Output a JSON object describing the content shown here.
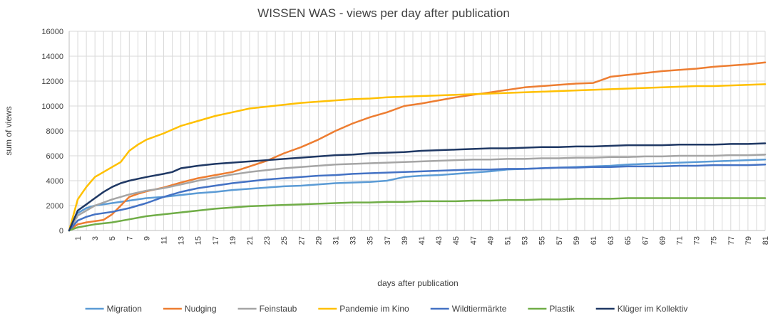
{
  "chart_data": {
    "type": "line",
    "title": "WISSEN WAS - views per day after publication",
    "xlabel": "days after publication",
    "ylabel": "sum of views",
    "ylim": [
      0,
      16000
    ],
    "yticks": [
      0,
      2000,
      4000,
      6000,
      8000,
      10000,
      12000,
      14000,
      16000
    ],
    "x_tick_labels": [
      1,
      3,
      5,
      7,
      9,
      11,
      13,
      15,
      17,
      19,
      21,
      23,
      25,
      27,
      29,
      31,
      33,
      35,
      37,
      39,
      41,
      43,
      45,
      47,
      49,
      51,
      53,
      55,
      57,
      59,
      61,
      63,
      65,
      67,
      69,
      71,
      73,
      75,
      77,
      79,
      81
    ],
    "x_range": [
      0,
      81
    ],
    "grid": "vertical and horizontal",
    "legend_position": "bottom",
    "series": [
      {
        "name": "Migration",
        "color": "#5b9bd5",
        "points": [
          [
            0,
            0
          ],
          [
            1,
            1400
          ],
          [
            2,
            1800
          ],
          [
            3,
            2000
          ],
          [
            5,
            2200
          ],
          [
            7,
            2400
          ],
          [
            9,
            2600
          ],
          [
            11,
            2700
          ],
          [
            13,
            2850
          ],
          [
            15,
            3000
          ],
          [
            17,
            3100
          ],
          [
            19,
            3250
          ],
          [
            21,
            3350
          ],
          [
            23,
            3450
          ],
          [
            25,
            3550
          ],
          [
            27,
            3600
          ],
          [
            29,
            3700
          ],
          [
            31,
            3800
          ],
          [
            33,
            3850
          ],
          [
            35,
            3900
          ],
          [
            37,
            4000
          ],
          [
            39,
            4300
          ],
          [
            41,
            4400
          ],
          [
            43,
            4450
          ],
          [
            45,
            4550
          ],
          [
            47,
            4650
          ],
          [
            49,
            4750
          ],
          [
            51,
            4900
          ],
          [
            53,
            4950
          ],
          [
            55,
            5000
          ],
          [
            57,
            5050
          ],
          [
            59,
            5100
          ],
          [
            61,
            5150
          ],
          [
            63,
            5200
          ],
          [
            65,
            5300
          ],
          [
            67,
            5350
          ],
          [
            69,
            5400
          ],
          [
            71,
            5450
          ],
          [
            73,
            5500
          ],
          [
            75,
            5550
          ],
          [
            77,
            5600
          ],
          [
            79,
            5650
          ],
          [
            81,
            5700
          ]
        ]
      },
      {
        "name": "Nudging",
        "color": "#ed7d31",
        "points": [
          [
            0,
            0
          ],
          [
            1,
            500
          ],
          [
            2,
            650
          ],
          [
            3,
            750
          ],
          [
            4,
            850
          ],
          [
            5,
            1300
          ],
          [
            6,
            2000
          ],
          [
            7,
            2700
          ],
          [
            8,
            2950
          ],
          [
            9,
            3150
          ],
          [
            11,
            3450
          ],
          [
            13,
            3850
          ],
          [
            15,
            4200
          ],
          [
            17,
            4450
          ],
          [
            19,
            4700
          ],
          [
            21,
            5150
          ],
          [
            23,
            5600
          ],
          [
            25,
            6200
          ],
          [
            27,
            6700
          ],
          [
            29,
            7300
          ],
          [
            31,
            8000
          ],
          [
            33,
            8600
          ],
          [
            35,
            9100
          ],
          [
            37,
            9500
          ],
          [
            39,
            10000
          ],
          [
            41,
            10200
          ],
          [
            43,
            10450
          ],
          [
            45,
            10700
          ],
          [
            47,
            10900
          ],
          [
            49,
            11100
          ],
          [
            51,
            11300
          ],
          [
            53,
            11500
          ],
          [
            55,
            11600
          ],
          [
            57,
            11700
          ],
          [
            59,
            11800
          ],
          [
            61,
            11850
          ],
          [
            62,
            12100
          ],
          [
            63,
            12350
          ],
          [
            65,
            12500
          ],
          [
            67,
            12650
          ],
          [
            69,
            12800
          ],
          [
            71,
            12900
          ],
          [
            73,
            13000
          ],
          [
            75,
            13150
          ],
          [
            77,
            13250
          ],
          [
            79,
            13350
          ],
          [
            81,
            13500
          ]
        ]
      },
      {
        "name": "Feinstaub",
        "color": "#a5a5a5",
        "points": [
          [
            0,
            0
          ],
          [
            1,
            1200
          ],
          [
            2,
            1600
          ],
          [
            3,
            2000
          ],
          [
            5,
            2500
          ],
          [
            7,
            2900
          ],
          [
            9,
            3200
          ],
          [
            11,
            3400
          ],
          [
            13,
            3700
          ],
          [
            15,
            4000
          ],
          [
            17,
            4250
          ],
          [
            19,
            4500
          ],
          [
            21,
            4700
          ],
          [
            23,
            4850
          ],
          [
            25,
            5000
          ],
          [
            27,
            5100
          ],
          [
            29,
            5200
          ],
          [
            31,
            5300
          ],
          [
            33,
            5350
          ],
          [
            35,
            5400
          ],
          [
            37,
            5450
          ],
          [
            39,
            5500
          ],
          [
            41,
            5550
          ],
          [
            43,
            5600
          ],
          [
            45,
            5650
          ],
          [
            47,
            5700
          ],
          [
            49,
            5700
          ],
          [
            51,
            5750
          ],
          [
            53,
            5750
          ],
          [
            55,
            5800
          ],
          [
            57,
            5800
          ],
          [
            59,
            5850
          ],
          [
            61,
            5850
          ],
          [
            63,
            5900
          ],
          [
            65,
            5900
          ],
          [
            67,
            5950
          ],
          [
            69,
            5950
          ],
          [
            71,
            6000
          ],
          [
            73,
            6000
          ],
          [
            75,
            6000
          ],
          [
            77,
            6050
          ],
          [
            79,
            6050
          ],
          [
            81,
            6100
          ]
        ]
      },
      {
        "name": "Pandemie im Kino",
        "color": "#ffc000",
        "points": [
          [
            0,
            0
          ],
          [
            1,
            2500
          ],
          [
            2,
            3500
          ],
          [
            3,
            4300
          ],
          [
            5,
            5100
          ],
          [
            6,
            5500
          ],
          [
            7,
            6400
          ],
          [
            8,
            6900
          ],
          [
            9,
            7300
          ],
          [
            11,
            7800
          ],
          [
            13,
            8400
          ],
          [
            15,
            8800
          ],
          [
            17,
            9200
          ],
          [
            19,
            9500
          ],
          [
            21,
            9800
          ],
          [
            23,
            9950
          ],
          [
            25,
            10100
          ],
          [
            27,
            10250
          ],
          [
            29,
            10350
          ],
          [
            31,
            10450
          ],
          [
            33,
            10550
          ],
          [
            35,
            10600
          ],
          [
            37,
            10700
          ],
          [
            39,
            10750
          ],
          [
            41,
            10800
          ],
          [
            43,
            10850
          ],
          [
            45,
            10900
          ],
          [
            47,
            10950
          ],
          [
            49,
            11000
          ],
          [
            51,
            11050
          ],
          [
            53,
            11100
          ],
          [
            55,
            11150
          ],
          [
            57,
            11200
          ],
          [
            59,
            11250
          ],
          [
            61,
            11300
          ],
          [
            63,
            11350
          ],
          [
            65,
            11400
          ],
          [
            67,
            11450
          ],
          [
            69,
            11500
          ],
          [
            71,
            11550
          ],
          [
            73,
            11600
          ],
          [
            75,
            11600
          ],
          [
            77,
            11650
          ],
          [
            79,
            11700
          ],
          [
            81,
            11750
          ]
        ]
      },
      {
        "name": "Wildtiermärkte",
        "color": "#4472c4",
        "points": [
          [
            0,
            0
          ],
          [
            1,
            800
          ],
          [
            2,
            1100
          ],
          [
            3,
            1300
          ],
          [
            5,
            1500
          ],
          [
            7,
            1800
          ],
          [
            9,
            2200
          ],
          [
            11,
            2700
          ],
          [
            13,
            3100
          ],
          [
            15,
            3400
          ],
          [
            17,
            3600
          ],
          [
            19,
            3800
          ],
          [
            21,
            3950
          ],
          [
            23,
            4100
          ],
          [
            25,
            4200
          ],
          [
            27,
            4300
          ],
          [
            29,
            4400
          ],
          [
            31,
            4450
          ],
          [
            33,
            4550
          ],
          [
            35,
            4600
          ],
          [
            37,
            4650
          ],
          [
            39,
            4700
          ],
          [
            41,
            4750
          ],
          [
            43,
            4800
          ],
          [
            45,
            4850
          ],
          [
            47,
            4900
          ],
          [
            49,
            4900
          ],
          [
            51,
            4950
          ],
          [
            53,
            4950
          ],
          [
            55,
            5000
          ],
          [
            57,
            5050
          ],
          [
            59,
            5050
          ],
          [
            61,
            5100
          ],
          [
            63,
            5100
          ],
          [
            65,
            5150
          ],
          [
            67,
            5150
          ],
          [
            69,
            5150
          ],
          [
            71,
            5200
          ],
          [
            73,
            5200
          ],
          [
            75,
            5250
          ],
          [
            77,
            5250
          ],
          [
            79,
            5250
          ],
          [
            81,
            5300
          ]
        ]
      },
      {
        "name": "Plastik",
        "color": "#70ad47",
        "points": [
          [
            0,
            0
          ],
          [
            1,
            250
          ],
          [
            3,
            500
          ],
          [
            5,
            650
          ],
          [
            7,
            900
          ],
          [
            9,
            1150
          ],
          [
            11,
            1300
          ],
          [
            13,
            1450
          ],
          [
            15,
            1600
          ],
          [
            17,
            1750
          ],
          [
            19,
            1850
          ],
          [
            21,
            1950
          ],
          [
            23,
            2000
          ],
          [
            25,
            2050
          ],
          [
            27,
            2100
          ],
          [
            29,
            2150
          ],
          [
            31,
            2200
          ],
          [
            33,
            2250
          ],
          [
            35,
            2250
          ],
          [
            37,
            2300
          ],
          [
            39,
            2300
          ],
          [
            41,
            2350
          ],
          [
            43,
            2350
          ],
          [
            45,
            2350
          ],
          [
            47,
            2400
          ],
          [
            49,
            2400
          ],
          [
            51,
            2450
          ],
          [
            53,
            2450
          ],
          [
            55,
            2500
          ],
          [
            57,
            2500
          ],
          [
            59,
            2550
          ],
          [
            61,
            2550
          ],
          [
            63,
            2550
          ],
          [
            65,
            2600
          ],
          [
            67,
            2600
          ],
          [
            69,
            2600
          ],
          [
            71,
            2600
          ],
          [
            73,
            2600
          ],
          [
            75,
            2600
          ],
          [
            77,
            2600
          ],
          [
            79,
            2600
          ],
          [
            81,
            2600
          ]
        ]
      },
      {
        "name": "Klüger im Kollektiv",
        "color": "#1f3864",
        "points": [
          [
            0,
            0
          ],
          [
            1,
            1600
          ],
          [
            2,
            2100
          ],
          [
            3,
            2600
          ],
          [
            4,
            3100
          ],
          [
            5,
            3500
          ],
          [
            6,
            3800
          ],
          [
            7,
            4000
          ],
          [
            9,
            4300
          ],
          [
            11,
            4550
          ],
          [
            12,
            4700
          ],
          [
            13,
            5000
          ],
          [
            15,
            5200
          ],
          [
            17,
            5350
          ],
          [
            19,
            5450
          ],
          [
            21,
            5550
          ],
          [
            23,
            5650
          ],
          [
            25,
            5750
          ],
          [
            27,
            5850
          ],
          [
            29,
            5950
          ],
          [
            31,
            6050
          ],
          [
            33,
            6100
          ],
          [
            35,
            6200
          ],
          [
            37,
            6250
          ],
          [
            39,
            6300
          ],
          [
            41,
            6400
          ],
          [
            43,
            6450
          ],
          [
            45,
            6500
          ],
          [
            47,
            6550
          ],
          [
            49,
            6600
          ],
          [
            51,
            6600
          ],
          [
            53,
            6650
          ],
          [
            55,
            6700
          ],
          [
            57,
            6700
          ],
          [
            59,
            6750
          ],
          [
            61,
            6750
          ],
          [
            63,
            6800
          ],
          [
            65,
            6850
          ],
          [
            67,
            6850
          ],
          [
            69,
            6850
          ],
          [
            71,
            6900
          ],
          [
            73,
            6900
          ],
          [
            75,
            6900
          ],
          [
            77,
            6950
          ],
          [
            79,
            6950
          ],
          [
            81,
            7000
          ]
        ]
      }
    ]
  }
}
